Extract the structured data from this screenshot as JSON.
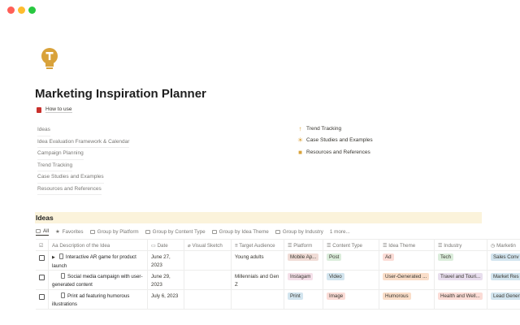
{
  "page": {
    "title": "Marketing Inspiration Planner",
    "how_to_use": "How to use"
  },
  "nav_left": [
    "Ideas",
    "Idea Evaluation Framework & Calendar",
    "Campaign Planning",
    "Trend Tracking",
    "Case Studies and Examples",
    "Resources and References"
  ],
  "nav_right": [
    {
      "label": "Trend Tracking",
      "icon": "arrow-up-icon"
    },
    {
      "label": "Case Studies and Examples",
      "icon": "sun-icon"
    },
    {
      "label": "Resources and References",
      "icon": "note-icon"
    }
  ],
  "database": {
    "title": "Ideas",
    "views": [
      "All",
      "Favorites",
      "Group by Platform",
      "Group by Content Type",
      "Group by Idea Theme",
      "Group by Industry",
      "1 more..."
    ],
    "columns": [
      "Description of the Idea",
      "Date",
      "Visual Sketch",
      "Target Audience",
      "Platform",
      "Content Type",
      "Idea Theme",
      "Industry",
      "Marketin"
    ],
    "rows": [
      {
        "desc": "Interactive AR game for product launch",
        "date": "June 27, 2023",
        "audience": "Young adults",
        "platform": "Mobile Ap...",
        "content": "Post",
        "theme": "Ad",
        "industry": "Tech",
        "marketing": "Sales Conv"
      },
      {
        "desc": "Social media campaign with user-generated content",
        "date": "June 29, 2023",
        "audience": "Millennials and Gen Z",
        "platform": "Instagam",
        "content": "Video",
        "theme": "User-Generated ...",
        "industry": "Travel and Touri...",
        "marketing": "Market Res"
      },
      {
        "desc": "Print ad featuring humorous illustrations",
        "date": "July 6, 2023",
        "audience": "",
        "platform": "Print",
        "content": "Image",
        "theme": "Humorous",
        "industry": "Health and Well...",
        "marketing": "Lead Gener"
      }
    ]
  },
  "colors": {
    "accent": "#d9a23a",
    "banner": "#fbf3db"
  }
}
